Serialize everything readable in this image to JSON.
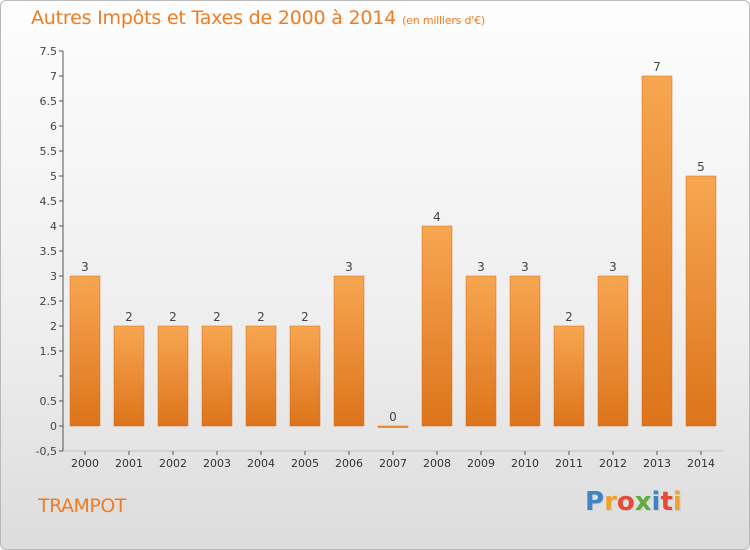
{
  "title": "Autres Impôts et Taxes de 2000 à 2014",
  "title_unit": "(en milliers d'€)",
  "commune": "TRAMPOT",
  "brand": {
    "letters": [
      "P",
      "r",
      "o",
      "x",
      "i",
      "t",
      "i"
    ],
    "colors": [
      "#3f84c7",
      "#f0a22e",
      "#e64a3b",
      "#5fae3b",
      "#3f84c7",
      "#e64a3b",
      "#f0a22e"
    ]
  },
  "chart_data": {
    "type": "bar",
    "title": "Autres Impôts et Taxes de 2000 à 2014",
    "subtitle": "(en milliers d'€)",
    "categories": [
      "2000",
      "2001",
      "2002",
      "2003",
      "2004",
      "2005",
      "2006",
      "2007",
      "2008",
      "2009",
      "2010",
      "2011",
      "2012",
      "2013",
      "2014"
    ],
    "values": [
      3,
      2,
      2,
      2,
      2,
      2,
      3,
      0,
      4,
      3,
      3,
      2,
      3,
      7,
      5
    ],
    "data_labels": [
      "3",
      "2",
      "2",
      "2",
      "2",
      "2",
      "3",
      "0",
      "4",
      "3",
      "3",
      "2",
      "3",
      "7",
      "5"
    ],
    "ylim": [
      -0.5,
      7.5
    ],
    "yticks": [
      -0.5,
      0,
      0.5,
      1,
      1.5,
      2,
      2.5,
      3,
      3.5,
      4,
      4.5,
      5,
      5.5,
      6,
      6.5,
      7,
      7.5
    ],
    "ytick_labels": [
      "-0,5",
      "0",
      "0.5",
      "",
      "1.5",
      "2",
      "2.5",
      "3",
      "3.5",
      "4",
      "4.5",
      "5",
      "5.5",
      "6",
      "6.5",
      "7",
      "7.5"
    ],
    "grid": false,
    "bar_color": "#ef8a2c",
    "text_color": "#ef7c22"
  }
}
